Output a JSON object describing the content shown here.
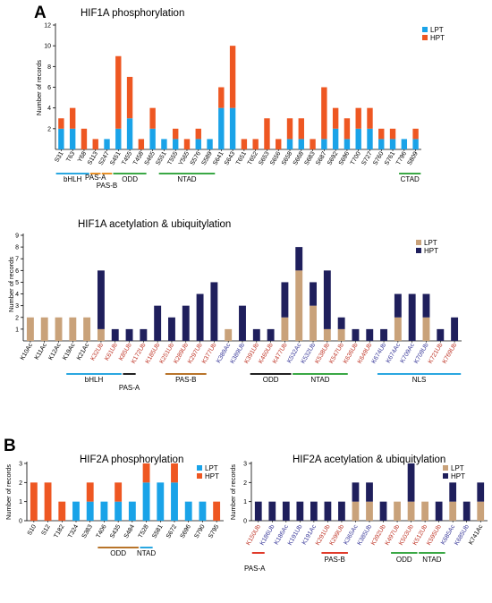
{
  "panel_labels": {
    "A": "A",
    "B": "B"
  },
  "colors": {
    "lpt": "#1aa3e8",
    "hpt": "#ee5722",
    "ac_lpt": "#c9a27a",
    "ac_hpt": "#1f1f5c",
    "ub_red": "#c0392b",
    "ac_blue": "#3b3b9a",
    "bar_black": "#000000"
  },
  "domain_colors": {
    "blue": "#2aa7e0",
    "orange": "#e8922a",
    "green": "#3aa845",
    "red": "#e03a2a",
    "brown": "#b8742a",
    "black": "#222222"
  },
  "chart_data": [
    {
      "id": "c1",
      "type": "bar",
      "stacked": true,
      "title": "HIF1A phosphorylation",
      "ylabel": "Number of records",
      "ylim": [
        0,
        12
      ],
      "yticks": [
        2,
        4,
        6,
        8,
        10,
        12
      ],
      "legend": {
        "position": "top-right",
        "entries": [
          "LPT",
          "HPT"
        ]
      },
      "categories": [
        "S31",
        "T63",
        "Y68",
        "S113",
        "S247",
        "S451",
        "T455",
        "T458",
        "S465",
        "S551",
        "T555",
        "Y565",
        "S576",
        "S589",
        "S641",
        "S643",
        "T651",
        "T652",
        "S653",
        "S656",
        "S658",
        "S668",
        "S683",
        "S687",
        "S692",
        "S696",
        "T700",
        "S727",
        "S760",
        "S761",
        "T796",
        "S809"
      ],
      "series": [
        {
          "name": "LPT",
          "values": [
            2,
            2,
            0,
            0,
            1,
            2,
            3,
            0,
            2,
            1,
            1,
            0,
            1,
            1,
            4,
            4,
            0,
            0,
            0,
            0,
            1,
            1,
            0,
            1,
            2,
            1,
            2,
            2,
            1,
            1,
            1,
            1
          ]
        },
        {
          "name": "HPT",
          "values": [
            1,
            2,
            2,
            1,
            0,
            7,
            4,
            1,
            2,
            0,
            1,
            1,
            1,
            0,
            2,
            6,
            1,
            1,
            3,
            1,
            2,
            2,
            1,
            5,
            2,
            2,
            2,
            2,
            1,
            1,
            0,
            1
          ]
        }
      ],
      "domains": [
        {
          "label": "bHLH",
          "from": "S31",
          "to": "Y68",
          "color": "blue"
        },
        {
          "label": "PAS-A",
          "from": "S113",
          "to": "S113",
          "color": "orange"
        },
        {
          "label": "PAS-B",
          "from": "S247",
          "to": "S247",
          "color": "orange"
        },
        {
          "label": "ODD",
          "from": "S451",
          "to": "T458",
          "color": "green"
        },
        {
          "label": "NTAD",
          "from": "S551",
          "to": "S589",
          "color": "green"
        },
        {
          "label": "CTAD",
          "from": "T796",
          "to": "S809",
          "color": "green"
        }
      ]
    },
    {
      "id": "c2",
      "type": "bar",
      "stacked": true,
      "title": "HIF1A acetylation & ubiquitylation",
      "ylabel": "Number of records",
      "ylim": [
        0,
        9
      ],
      "yticks": [
        1,
        2,
        3,
        4,
        5,
        6,
        7,
        8,
        9
      ],
      "legend": {
        "position": "top-right",
        "entries": [
          "LPT",
          "HPT"
        ]
      },
      "categories": [
        "K10Ac",
        "K11Ac",
        "K12Ac",
        "K19Ac",
        "K21Ac",
        "K32Ub",
        "K61Ub",
        "K85Ub",
        "K172Ub",
        "K185Ub",
        "K251Ub",
        "K289Ub",
        "K297Ub",
        "K377Ub",
        "K389Ac",
        "K389Ub",
        "K391Ub",
        "K460Ub",
        "K477Ub",
        "K532Ac",
        "K532Ub",
        "K538Ub",
        "K547Ub",
        "K636Ub",
        "K649Ub",
        "K674Ub",
        "K674Ac",
        "K709Ac",
        "K709Ub",
        "K721Ub",
        "K769Ub"
      ],
      "label_colors": [
        "black",
        "black",
        "black",
        "black",
        "black",
        "red",
        "red",
        "red",
        "red",
        "red",
        "red",
        "red",
        "red",
        "red",
        "blue",
        "blue",
        "red",
        "red",
        "red",
        "blue",
        "blue",
        "red",
        "red",
        "red",
        "red",
        "blue",
        "blue",
        "blue",
        "blue",
        "red",
        "red"
      ],
      "series": [
        {
          "name": "LPT",
          "values": [
            2,
            2,
            2,
            2,
            2,
            1,
            0,
            0,
            0,
            0,
            0,
            0,
            0,
            0,
            1,
            0,
            0,
            0,
            2,
            6,
            3,
            1,
            1,
            0,
            0,
            0,
            2,
            0,
            2,
            0,
            0
          ]
        },
        {
          "name": "HPT",
          "values": [
            0,
            0,
            0,
            0,
            0,
            5,
            1,
            1,
            1,
            3,
            2,
            3,
            4,
            5,
            0,
            3,
            1,
            1,
            3,
            2,
            2,
            5,
            1,
            1,
            1,
            1,
            2,
            4,
            2,
            1,
            2
          ]
        }
      ],
      "domains": [
        {
          "label": "bHLH",
          "from": "K19Ac",
          "to": "K61Ub",
          "color": "blue"
        },
        {
          "label": "PAS-A",
          "from": "K85Ub",
          "to": "K85Ub",
          "color": "black"
        },
        {
          "label": "PAS-B",
          "from": "K251Ub",
          "to": "K297Ub",
          "color": "brown"
        },
        {
          "label": "ODD",
          "from": "K391Ub",
          "to": "K477Ub",
          "color": "black"
        },
        {
          "label": "NTAD",
          "from": "K532Ac",
          "to": "K547Ub",
          "color": "green"
        },
        {
          "label": "NLS",
          "from": "K674Ub",
          "to": "K769Ub",
          "color": "blue"
        }
      ]
    },
    {
      "id": "c3",
      "type": "bar",
      "stacked": true,
      "title": "HIF2A phosphorylation",
      "ylabel": "Number of records",
      "ylim": [
        0,
        3
      ],
      "yticks": [
        0,
        1,
        2,
        3
      ],
      "legend": {
        "position": "top-right",
        "entries": [
          "LPT",
          "HPT"
        ]
      },
      "categories": [
        "S10",
        "S12",
        "T182",
        "T324",
        "S383",
        "T406",
        "S435",
        "S484",
        "T528",
        "S581",
        "S672",
        "S696",
        "S790",
        "S795"
      ],
      "series": [
        {
          "name": "LPT",
          "values": [
            0,
            0,
            0,
            1,
            1,
            1,
            1,
            1,
            2,
            2,
            2,
            1,
            1,
            0
          ]
        },
        {
          "name": "HPT",
          "values": [
            2,
            2,
            1,
            0,
            1,
            0,
            1,
            0,
            1,
            0,
            1,
            0,
            0,
            1
          ]
        }
      ],
      "domains": [
        {
          "label": "ODD",
          "from": "T406",
          "to": "S484",
          "color": "brown"
        },
        {
          "label": "NTAD",
          "from": "T528",
          "to": "T528",
          "color": "blue"
        }
      ]
    },
    {
      "id": "c4",
      "type": "bar",
      "stacked": true,
      "title": "HIF2A acetylation & ubiquitylation",
      "ylabel": "Number of records",
      "ylim": [
        0,
        3
      ],
      "yticks": [
        0,
        1,
        2,
        3
      ],
      "legend": {
        "position": "top-right",
        "entries": [
          "LPT",
          "HPT"
        ]
      },
      "categories": [
        "K150Ub",
        "K186Ub",
        "K186Ac",
        "K191Ub",
        "K191Ac",
        "K291Ub",
        "K299Ub",
        "K365Ac",
        "K385Ub",
        "K392Ub",
        "K497Ub",
        "K503Ub",
        "K512Ub",
        "K595Ub",
        "K685Ac",
        "K685Ub",
        "K741Ac"
      ],
      "label_colors": [
        "red",
        "blue",
        "blue",
        "blue",
        "blue",
        "red",
        "red",
        "blue",
        "blue",
        "red",
        "red",
        "red",
        "red",
        "red",
        "blue",
        "blue",
        "black"
      ],
      "series": [
        {
          "name": "LPT",
          "values": [
            0,
            0,
            0,
            0,
            0,
            0,
            0,
            1,
            1,
            0,
            1,
            1,
            1,
            0,
            1,
            0,
            1
          ]
        },
        {
          "name": "HPT",
          "values": [
            1,
            1,
            1,
            1,
            1,
            1,
            1,
            1,
            1,
            1,
            0,
            2,
            0,
            1,
            1,
            1,
            1
          ]
        }
      ],
      "domains": [
        {
          "label": "PAS-A",
          "from": "K150Ub",
          "to": "K150Ub",
          "color": "red"
        },
        {
          "label": "PAS-B",
          "from": "K291Ub",
          "to": "K299Ub",
          "color": "red"
        },
        {
          "label": "ODD",
          "from": "K497Ub",
          "to": "K503Ub",
          "color": "green"
        },
        {
          "label": "NTAD",
          "from": "K512Ub",
          "to": "K595Ub",
          "color": "green"
        }
      ]
    }
  ]
}
